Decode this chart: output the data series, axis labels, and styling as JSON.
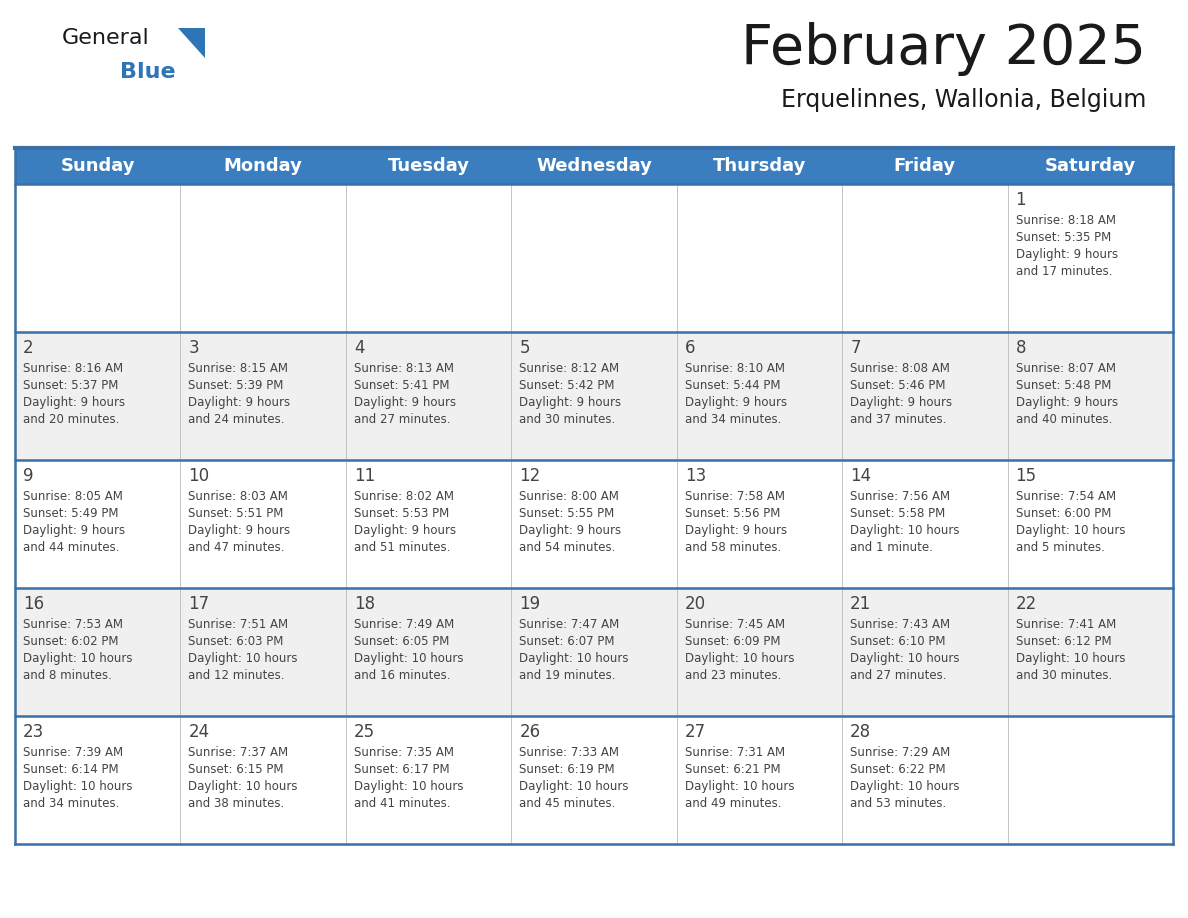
{
  "title": "February 2025",
  "subtitle": "Erquelinnes, Wallonia, Belgium",
  "days_of_week": [
    "Sunday",
    "Monday",
    "Tuesday",
    "Wednesday",
    "Thursday",
    "Friday",
    "Saturday"
  ],
  "header_bg": "#3A7EBF",
  "header_text_color": "#FFFFFF",
  "cell_bg_light": "#F0F0F0",
  "cell_bg_white": "#FFFFFF",
  "separator_color": "#3A6FA8",
  "text_color": "#444444",
  "title_color": "#1a1a1a",
  "subtitle_color": "#1a1a1a",
  "logo_general_color": "#1a1a1a",
  "logo_blue_color": "#2E75B6",
  "weeks": [
    [
      null,
      null,
      null,
      null,
      null,
      null,
      {
        "day": 1,
        "sunrise": "8:18 AM",
        "sunset": "5:35 PM",
        "daylight_line1": "Daylight: 9 hours",
        "daylight_line2": "and 17 minutes."
      }
    ],
    [
      {
        "day": 2,
        "sunrise": "8:16 AM",
        "sunset": "5:37 PM",
        "daylight_line1": "Daylight: 9 hours",
        "daylight_line2": "and 20 minutes."
      },
      {
        "day": 3,
        "sunrise": "8:15 AM",
        "sunset": "5:39 PM",
        "daylight_line1": "Daylight: 9 hours",
        "daylight_line2": "and 24 minutes."
      },
      {
        "day": 4,
        "sunrise": "8:13 AM",
        "sunset": "5:41 PM",
        "daylight_line1": "Daylight: 9 hours",
        "daylight_line2": "and 27 minutes."
      },
      {
        "day": 5,
        "sunrise": "8:12 AM",
        "sunset": "5:42 PM",
        "daylight_line1": "Daylight: 9 hours",
        "daylight_line2": "and 30 minutes."
      },
      {
        "day": 6,
        "sunrise": "8:10 AM",
        "sunset": "5:44 PM",
        "daylight_line1": "Daylight: 9 hours",
        "daylight_line2": "and 34 minutes."
      },
      {
        "day": 7,
        "sunrise": "8:08 AM",
        "sunset": "5:46 PM",
        "daylight_line1": "Daylight: 9 hours",
        "daylight_line2": "and 37 minutes."
      },
      {
        "day": 8,
        "sunrise": "8:07 AM",
        "sunset": "5:48 PM",
        "daylight_line1": "Daylight: 9 hours",
        "daylight_line2": "and 40 minutes."
      }
    ],
    [
      {
        "day": 9,
        "sunrise": "8:05 AM",
        "sunset": "5:49 PM",
        "daylight_line1": "Daylight: 9 hours",
        "daylight_line2": "and 44 minutes."
      },
      {
        "day": 10,
        "sunrise": "8:03 AM",
        "sunset": "5:51 PM",
        "daylight_line1": "Daylight: 9 hours",
        "daylight_line2": "and 47 minutes."
      },
      {
        "day": 11,
        "sunrise": "8:02 AM",
        "sunset": "5:53 PM",
        "daylight_line1": "Daylight: 9 hours",
        "daylight_line2": "and 51 minutes."
      },
      {
        "day": 12,
        "sunrise": "8:00 AM",
        "sunset": "5:55 PM",
        "daylight_line1": "Daylight: 9 hours",
        "daylight_line2": "and 54 minutes."
      },
      {
        "day": 13,
        "sunrise": "7:58 AM",
        "sunset": "5:56 PM",
        "daylight_line1": "Daylight: 9 hours",
        "daylight_line2": "and 58 minutes."
      },
      {
        "day": 14,
        "sunrise": "7:56 AM",
        "sunset": "5:58 PM",
        "daylight_line1": "Daylight: 10 hours",
        "daylight_line2": "and 1 minute."
      },
      {
        "day": 15,
        "sunrise": "7:54 AM",
        "sunset": "6:00 PM",
        "daylight_line1": "Daylight: 10 hours",
        "daylight_line2": "and 5 minutes."
      }
    ],
    [
      {
        "day": 16,
        "sunrise": "7:53 AM",
        "sunset": "6:02 PM",
        "daylight_line1": "Daylight: 10 hours",
        "daylight_line2": "and 8 minutes."
      },
      {
        "day": 17,
        "sunrise": "7:51 AM",
        "sunset": "6:03 PM",
        "daylight_line1": "Daylight: 10 hours",
        "daylight_line2": "and 12 minutes."
      },
      {
        "day": 18,
        "sunrise": "7:49 AM",
        "sunset": "6:05 PM",
        "daylight_line1": "Daylight: 10 hours",
        "daylight_line2": "and 16 minutes."
      },
      {
        "day": 19,
        "sunrise": "7:47 AM",
        "sunset": "6:07 PM",
        "daylight_line1": "Daylight: 10 hours",
        "daylight_line2": "and 19 minutes."
      },
      {
        "day": 20,
        "sunrise": "7:45 AM",
        "sunset": "6:09 PM",
        "daylight_line1": "Daylight: 10 hours",
        "daylight_line2": "and 23 minutes."
      },
      {
        "day": 21,
        "sunrise": "7:43 AM",
        "sunset": "6:10 PM",
        "daylight_line1": "Daylight: 10 hours",
        "daylight_line2": "and 27 minutes."
      },
      {
        "day": 22,
        "sunrise": "7:41 AM",
        "sunset": "6:12 PM",
        "daylight_line1": "Daylight: 10 hours",
        "daylight_line2": "and 30 minutes."
      }
    ],
    [
      {
        "day": 23,
        "sunrise": "7:39 AM",
        "sunset": "6:14 PM",
        "daylight_line1": "Daylight: 10 hours",
        "daylight_line2": "and 34 minutes."
      },
      {
        "day": 24,
        "sunrise": "7:37 AM",
        "sunset": "6:15 PM",
        "daylight_line1": "Daylight: 10 hours",
        "daylight_line2": "and 38 minutes."
      },
      {
        "day": 25,
        "sunrise": "7:35 AM",
        "sunset": "6:17 PM",
        "daylight_line1": "Daylight: 10 hours",
        "daylight_line2": "and 41 minutes."
      },
      {
        "day": 26,
        "sunrise": "7:33 AM",
        "sunset": "6:19 PM",
        "daylight_line1": "Daylight: 10 hours",
        "daylight_line2": "and 45 minutes."
      },
      {
        "day": 27,
        "sunrise": "7:31 AM",
        "sunset": "6:21 PM",
        "daylight_line1": "Daylight: 10 hours",
        "daylight_line2": "and 49 minutes."
      },
      {
        "day": 28,
        "sunrise": "7:29 AM",
        "sunset": "6:22 PM",
        "daylight_line1": "Daylight: 10 hours",
        "daylight_line2": "and 53 minutes."
      },
      null
    ]
  ],
  "week_bg_colors": [
    "#FFFFFF",
    "#F0F0F0",
    "#FFFFFF",
    "#F0F0F0",
    "#FFFFFF"
  ]
}
